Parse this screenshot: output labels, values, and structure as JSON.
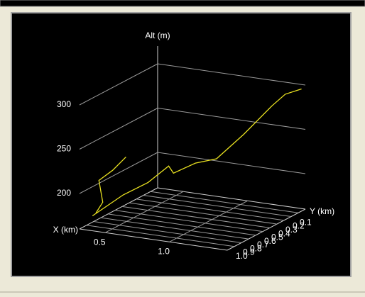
{
  "chart_data": {
    "type": "line3d",
    "xlabel": "X (km)",
    "ylabel": "Y (km)",
    "zlabel": "Alt (m)",
    "x": [
      0.4,
      0.42,
      0.39,
      0.47,
      0.54,
      null,
      0.34,
      0.49,
      0.59,
      0.69,
      0.7,
      0.81,
      0.93,
      1.08,
      1.24,
      1.31,
      1.42
    ],
    "y": [
      1.05,
      0.99,
      0.99,
      0.94,
      0.88,
      null,
      0.99,
      0.83,
      0.66,
      0.55,
      0.5,
      0.39,
      0.31,
      0.2,
      0.09,
      0.03,
      0.0
    ],
    "z": [
      178,
      188,
      212,
      223,
      237,
      null,
      171,
      191,
      200,
      216,
      206,
      215,
      219,
      245,
      276,
      288,
      295
    ],
    "color": "#e8e020",
    "xlim": [
      0.3,
      1.45
    ],
    "ylim": [
      0,
      1.1
    ],
    "zlim": [
      160,
      320
    ],
    "xticks": [
      0.5,
      {
        "value": 1.0,
        "label": "1.0"
      }
    ],
    "yticks": [
      0.1,
      0.2,
      0.3,
      0.4,
      0.5,
      0.6,
      0.7,
      0.8,
      0.9,
      {
        "value": 1.0,
        "label": "1.0"
      }
    ],
    "zticks": [
      200,
      250,
      300
    ],
    "grid": true
  }
}
